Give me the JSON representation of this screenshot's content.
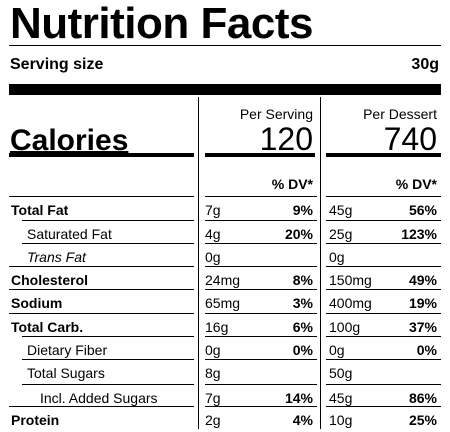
{
  "title": "Nutrition Facts",
  "serving": {
    "label": "Serving size",
    "value": "30g"
  },
  "columns": [
    {
      "header": "Per Serving",
      "calories": "120"
    },
    {
      "header": "Per Dessert",
      "calories": "740"
    }
  ],
  "calories_label": "Calories",
  "dv_header": "% DV*",
  "nutrients": [
    {
      "name": "Total Fat",
      "style": "bold",
      "amt1": "7g",
      "dv1": "9%",
      "amt2": "45g",
      "dv2": "56%"
    },
    {
      "name": "Saturated Fat",
      "style": "indent",
      "amt1": "4g",
      "dv1": "20%",
      "amt2": "25g",
      "dv2": "123%"
    },
    {
      "name": "Trans Fat",
      "style": "indent-italic",
      "amt1": "0g",
      "dv1": "",
      "amt2": "0g",
      "dv2": ""
    },
    {
      "name": "Cholesterol",
      "style": "bold",
      "amt1": "24mg",
      "dv1": "8%",
      "amt2": "150mg",
      "dv2": "49%"
    },
    {
      "name": "Sodium",
      "style": "bold",
      "amt1": "65mg",
      "dv1": "3%",
      "amt2": "400mg",
      "dv2": "19%"
    },
    {
      "name": "Total Carb.",
      "style": "bold",
      "amt1": "16g",
      "dv1": "6%",
      "amt2": "100g",
      "dv2": "37%"
    },
    {
      "name": "Dietary Fiber",
      "style": "indent",
      "amt1": "0g",
      "dv1": "0%",
      "amt2": "0g",
      "dv2": "0%"
    },
    {
      "name": "Total Sugars",
      "style": "indent",
      "amt1": "8g",
      "dv1": "",
      "amt2": "50g",
      "dv2": ""
    },
    {
      "name": "Incl. Added Sugars",
      "style": "indent2",
      "amt1": "7g",
      "dv1": "14%",
      "amt2": "45g",
      "dv2": "86%"
    },
    {
      "name": "Protein",
      "style": "bold",
      "amt1": "2g",
      "dv1": "4%",
      "amt2": "10g",
      "dv2": "25%"
    }
  ]
}
